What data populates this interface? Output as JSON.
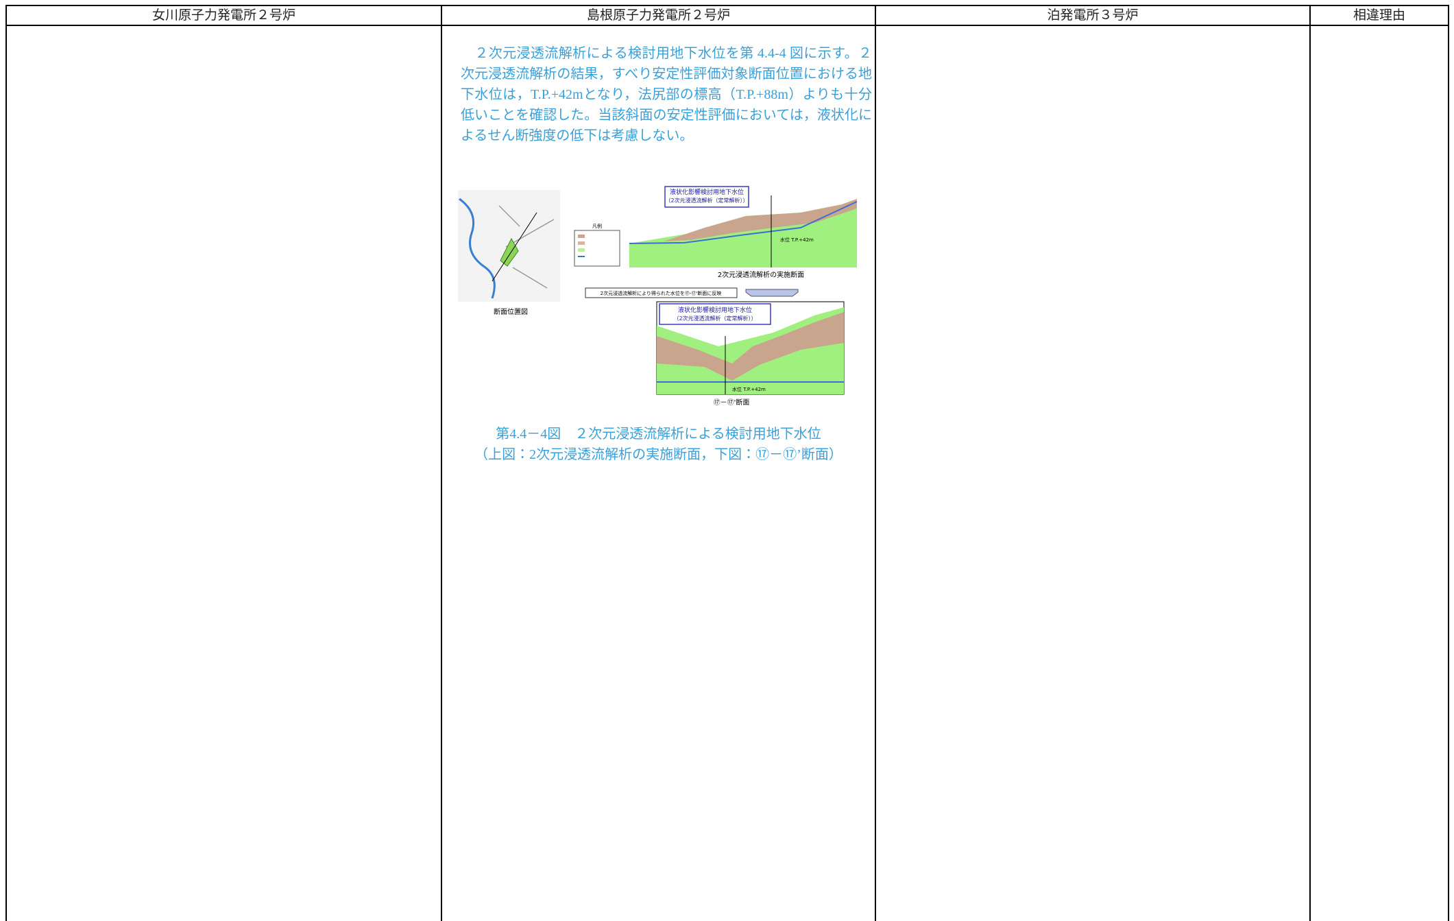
{
  "table": {
    "headers": [
      "女川原子力発電所２号炉",
      "島根原子力発電所２号炉",
      "泊発電所３号炉",
      "相違理由"
    ]
  },
  "shimane": {
    "paragraph": [
      "　２次元浸透流解析による検討用地下水位を第 4.4-4 図に示す。２",
      "次元浸透流解析の結果，すべり安定性評価対象断面位置における地",
      "下水位は，T.P.+42mとなり，法尻部の標高（T.P.+88m）よりも十分",
      "低いことを確認した。当該斜面の安定性評価においては，液状化に",
      "よるせん断強度の低下は考慮しない。"
    ],
    "figure": {
      "map_label": "断面位置図",
      "legend": "凡例",
      "top_box": [
        "液状化影響検討用地下水位",
        "（2次元浸透流解析（定常解析））"
      ],
      "top_water": "水位 T.P.+42m",
      "top_caption": "2次元浸透流解析の実施断面",
      "banner": "2次元浸透流解析により得られた水位を⑰-⑰'断面に反映",
      "bottom_box": [
        "液状化影響検討用地下水位",
        "（2次元浸透流解析（定常解析））"
      ],
      "bottom_water": "水位 T.P.+42m",
      "bottom_caption": "⑰－⑰'断面"
    },
    "caption": [
      "第4.4－4図　２次元浸透流解析による検討用地下水位",
      "（上図：2次元浸透流解析の実施断面，下図：⑰－⑰’断面）"
    ]
  }
}
